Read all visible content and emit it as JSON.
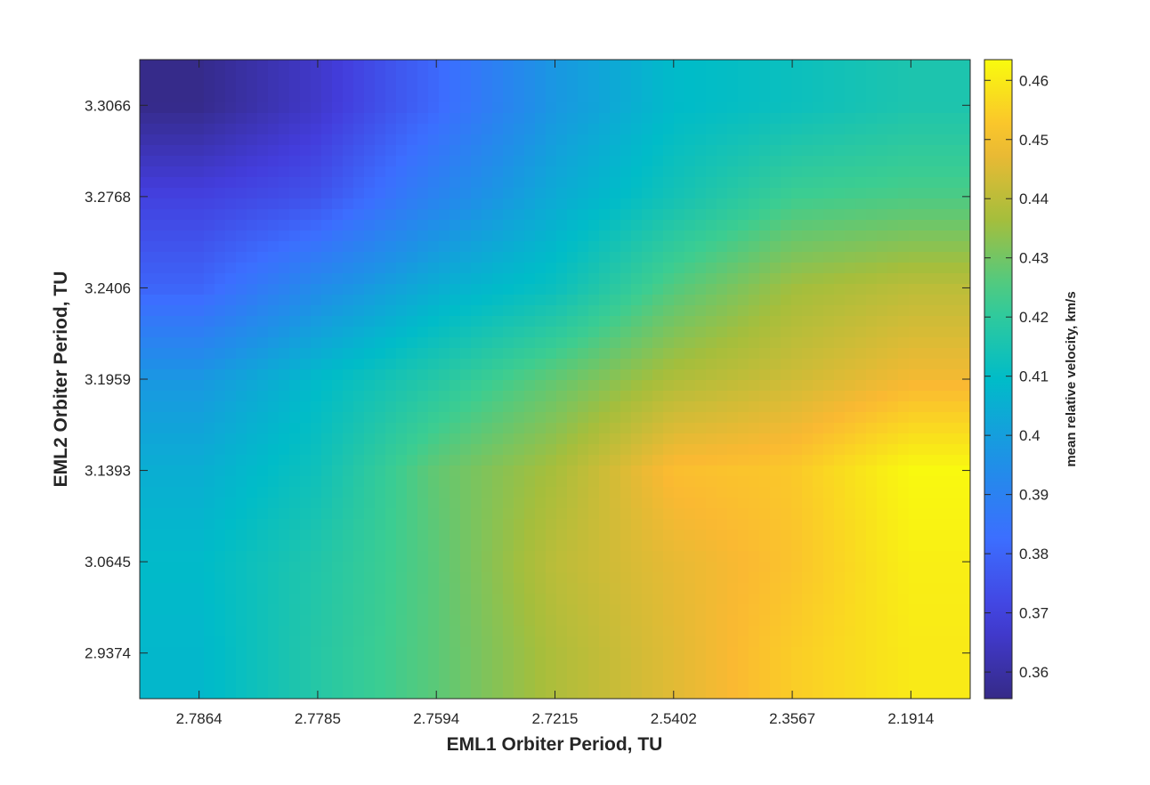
{
  "chart_data": {
    "type": "heatmap",
    "title": "",
    "xlabel": "EML1 Orbiter Period, TU",
    "ylabel": "EML2 Orbiter Period, TU",
    "x_tick_labels": [
      "2.7864",
      "2.7785",
      "2.7594",
      "2.7215",
      "2.5402",
      "2.3567",
      "2.1914"
    ],
    "y_tick_labels": [
      "3.3066",
      "3.2768",
      "3.2406",
      "3.1959",
      "3.1393",
      "3.0645",
      "2.9374"
    ],
    "values": [
      [
        0.356,
        0.366,
        0.381,
        0.398,
        0.409,
        0.412,
        0.416
      ],
      [
        0.37,
        0.375,
        0.391,
        0.404,
        0.414,
        0.423,
        0.425
      ],
      [
        0.38,
        0.394,
        0.405,
        0.412,
        0.426,
        0.436,
        0.44
      ],
      [
        0.398,
        0.409,
        0.418,
        0.428,
        0.438,
        0.443,
        0.449
      ],
      [
        0.405,
        0.413,
        0.428,
        0.437,
        0.451,
        0.453,
        0.463
      ],
      [
        0.409,
        0.417,
        0.427,
        0.44,
        0.447,
        0.452,
        0.461
      ],
      [
        0.408,
        0.418,
        0.427,
        0.438,
        0.446,
        0.454,
        0.46
      ]
    ],
    "colorbar": {
      "label": "mean relative velocity, km/s",
      "ticks": [
        "0.36",
        "0.37",
        "0.38",
        "0.39",
        "0.4",
        "0.41",
        "0.42",
        "0.43",
        "0.44",
        "0.45",
        "0.46"
      ],
      "tick_values": [
        0.36,
        0.37,
        0.38,
        0.39,
        0.4,
        0.41,
        0.42,
        0.43,
        0.44,
        0.45,
        0.46
      ],
      "range": [
        0.3555,
        0.4635
      ],
      "colormap": "parula"
    },
    "shading": "interp",
    "grid": false
  }
}
